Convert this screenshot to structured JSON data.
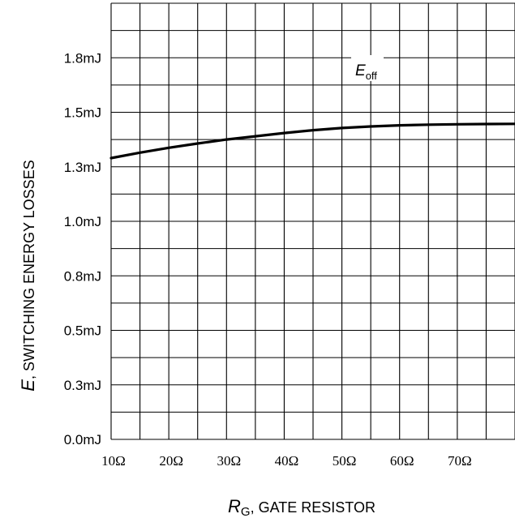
{
  "chart_data": {
    "type": "line",
    "y_axis": {
      "label_var": "E",
      "label_text": ", SWITCHING ENERGY LOSSES",
      "ticks": [
        "0.0mJ",
        "0.3mJ",
        "0.5mJ",
        "0.8mJ",
        "1.0mJ",
        "1.3mJ",
        "1.5mJ",
        "1.8mJ"
      ],
      "tick_values": [
        0.0,
        0.25,
        0.5,
        0.75,
        1.0,
        1.25,
        1.5,
        1.75
      ],
      "ylim": [
        0,
        2.0
      ]
    },
    "x_axis": {
      "label_var": "R",
      "label_sub": "G",
      "label_text": ", GATE RESISTOR",
      "ticks": [
        "10Ω",
        "20Ω",
        "30Ω",
        "40Ω",
        "50Ω",
        "60Ω",
        "70Ω"
      ],
      "tick_values": [
        10,
        20,
        30,
        40,
        50,
        60,
        70
      ],
      "xlim": [
        10,
        80
      ]
    },
    "grid": true,
    "series": [
      {
        "name_var": "E",
        "name_sub": "off",
        "color": "#000000",
        "x": [
          10,
          15,
          20,
          25,
          30,
          35,
          40,
          45,
          50,
          55,
          60,
          65,
          70,
          75,
          80
        ],
        "y": [
          1.29,
          1.315,
          1.337,
          1.357,
          1.375,
          1.39,
          1.405,
          1.418,
          1.428,
          1.435,
          1.44,
          1.443,
          1.445,
          1.446,
          1.447
        ]
      }
    ]
  }
}
